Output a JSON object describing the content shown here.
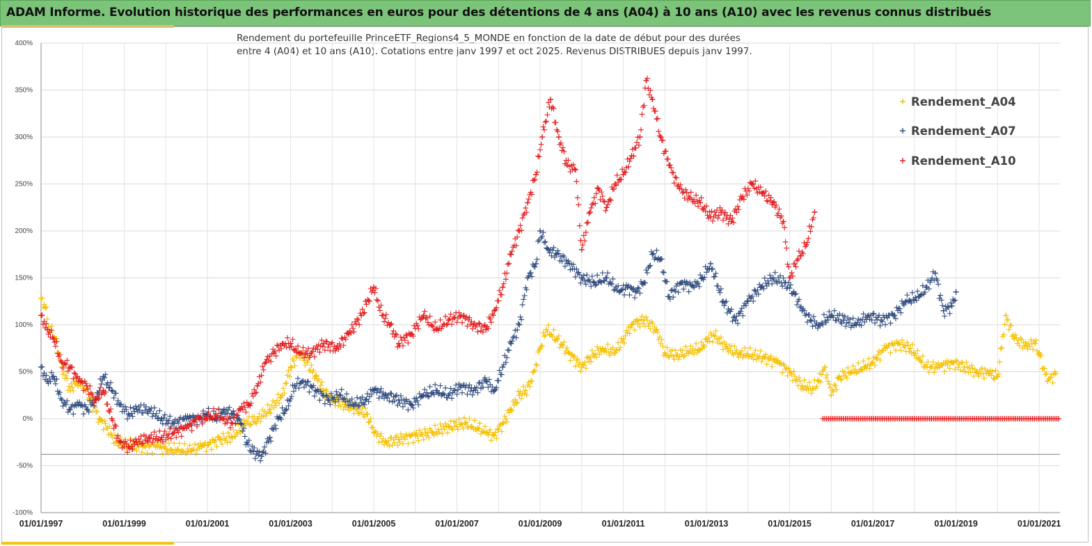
{
  "header": {
    "title": "ADAM Informe. Evolution historique des performances en euros pour des détentions de 4 ans (A04) à 10 ans (A10) avec les revenus connus distribués"
  },
  "colors": {
    "header_bg": "#7cc47a",
    "accent": "#f0c419",
    "a04": "#f5c000",
    "a07": "#2e4a7d",
    "a10": "#e31a1c"
  },
  "chart_data": {
    "type": "scatter",
    "title_line1": "Rendement du portefeuille PrinceETF_Regions4_5_MONDE  en fonction de la date de début pour des durées",
    "title_line2": "entre 4 (A04) et 10 ans (A10). Cotations entre janv 1997 et oct 2025. Revenus DISTRIBUES depuis janv 1997.",
    "xlabel": "",
    "ylabel": "",
    "xlim": [
      1997.0,
      2021.5
    ],
    "ylim": [
      -100,
      400
    ],
    "y_ticks": [
      -100,
      -50,
      0,
      50,
      100,
      150,
      200,
      250,
      300,
      350,
      400
    ],
    "y_tick_labels": [
      "-100%",
      "-50%",
      "0%",
      "50%",
      "100%",
      "150%",
      "200%",
      "250%",
      "300%",
      "350%",
      "400%"
    ],
    "x_ticks": [
      1997,
      1999,
      2001,
      2003,
      2005,
      2007,
      2009,
      2011,
      2013,
      2015,
      2017,
      2019,
      2021
    ],
    "x_tick_labels": [
      "01/01/1997",
      "01/01/1999",
      "01/01/2001",
      "01/01/2003",
      "01/01/2005",
      "01/01/2007",
      "01/01/2009",
      "01/01/2011",
      "01/01/2013",
      "01/01/2015",
      "01/01/2017",
      "01/01/2019",
      "01/01/2021"
    ],
    "reference_line_y": -38,
    "grid": true,
    "legend_position": "top-right",
    "series": [
      {
        "name": "Rendement_A04",
        "color": "#f5c000",
        "x": [
          1997.0,
          1997.1,
          1997.2,
          1997.35,
          1997.5,
          1997.7,
          1997.85,
          1998.0,
          1998.2,
          1998.4,
          1998.6,
          1998.8,
          1999.0,
          1999.2,
          1999.5,
          1999.8,
          2000.0,
          2000.3,
          2000.6,
          2000.85,
          2001.0,
          2001.3,
          2001.6,
          2001.9,
          2002.2,
          2002.5,
          2002.8,
          2003.0,
          2003.2,
          2003.4,
          2003.6,
          2003.8,
          2004.0,
          2004.3,
          2004.6,
          2004.85,
          2005.0,
          2005.3,
          2005.6,
          2006.0,
          2006.4,
          2006.8,
          2007.2,
          2007.5,
          2007.7,
          2007.9,
          2008.1,
          2008.3,
          2008.5,
          2008.65,
          2008.8,
          2009.0,
          2009.15,
          2009.4,
          2009.7,
          2010.0,
          2010.2,
          2010.5,
          2010.8,
          2011.0,
          2011.2,
          2011.5,
          2011.8,
          2012.0,
          2012.3,
          2012.6,
          2012.9,
          2013.0,
          2013.2,
          2013.5,
          2013.8,
          2014.1,
          2014.4,
          2014.7,
          2015.0,
          2015.3,
          2015.55,
          2015.7,
          2015.85,
          2016.0,
          2016.2,
          2016.5,
          2016.8,
          2017.0,
          2017.3,
          2017.6,
          2017.9,
          2018.1,
          2018.3,
          2018.6,
          2018.9,
          2019.2,
          2019.5,
          2019.8,
          2020.0,
          2020.2,
          2020.4,
          2020.7,
          2020.9,
          2021.0,
          2021.2,
          2021.4
        ],
        "values": [
          128,
          118,
          95,
          85,
          55,
          30,
          40,
          35,
          20,
          0,
          -10,
          -25,
          -28,
          -28,
          -30,
          -30,
          -32,
          -33,
          -34,
          -30,
          -28,
          -22,
          -20,
          -5,
          0,
          10,
          25,
          55,
          70,
          60,
          45,
          30,
          20,
          15,
          10,
          5,
          -15,
          -25,
          -22,
          -18,
          -15,
          -8,
          -5,
          -10,
          -15,
          -18,
          -5,
          10,
          25,
          30,
          40,
          75,
          95,
          85,
          70,
          55,
          65,
          75,
          70,
          85,
          100,
          105,
          95,
          70,
          68,
          72,
          75,
          85,
          88,
          75,
          70,
          68,
          65,
          60,
          50,
          35,
          32,
          40,
          55,
          25,
          45,
          50,
          55,
          60,
          75,
          80,
          75,
          65,
          55,
          55,
          60,
          55,
          50,
          48,
          45,
          110,
          85,
          78,
          80,
          70,
          40,
          48
        ]
      },
      {
        "name": "Rendement_A07",
        "color": "#2e4a7d",
        "x": [
          1997.0,
          1997.15,
          1997.3,
          1997.5,
          1997.7,
          1997.9,
          1998.1,
          1998.3,
          1998.5,
          1998.7,
          1998.9,
          1999.1,
          1999.3,
          1999.6,
          1999.9,
          2000.2,
          2000.5,
          2000.8,
          2001.0,
          2001.2,
          2001.4,
          2001.6,
          2001.8,
          2001.95,
          2002.1,
          2002.3,
          2002.5,
          2002.7,
          2002.9,
          2003.1,
          2003.3,
          2003.6,
          2003.9,
          2004.2,
          2004.5,
          2004.8,
          2005.0,
          2005.3,
          2005.6,
          2005.9,
          2006.2,
          2006.5,
          2006.8,
          2007.1,
          2007.4,
          2007.7,
          2007.9,
          2008.1,
          2008.3,
          2008.5,
          2008.7,
          2008.9,
          2009.0,
          2009.2,
          2009.4,
          2009.7,
          2010.0,
          2010.3,
          2010.6,
          2010.9,
          2011.1,
          2011.3,
          2011.5,
          2011.7,
          2011.9,
          2012.1,
          2012.4,
          2012.7,
          2012.9,
          2013.1,
          2013.4,
          2013.7,
          2014.0,
          2014.3,
          2014.6,
          2014.9,
          2015.1,
          2015.3,
          2015.5,
          2015.7,
          2016.0,
          2016.3,
          2016.6,
          2016.9,
          2017.2,
          2017.5,
          2017.8,
          2018.1,
          2018.3,
          2018.5,
          2018.7,
          2018.9,
          2019.0
        ],
        "values": [
          55,
          40,
          45,
          20,
          10,
          15,
          10,
          20,
          45,
          30,
          15,
          5,
          10,
          10,
          0,
          -5,
          0,
          0,
          5,
          0,
          10,
          5,
          -5,
          -25,
          -35,
          -40,
          -20,
          0,
          10,
          35,
          40,
          30,
          20,
          25,
          15,
          20,
          30,
          25,
          20,
          15,
          25,
          30,
          25,
          35,
          30,
          40,
          30,
          55,
          80,
          100,
          150,
          165,
          200,
          180,
          175,
          165,
          150,
          145,
          150,
          135,
          140,
          135,
          145,
          175,
          170,
          130,
          145,
          140,
          150,
          165,
          125,
          105,
          125,
          140,
          150,
          145,
          135,
          115,
          105,
          100,
          110,
          105,
          100,
          110,
          105,
          110,
          125,
          130,
          140,
          155,
          115,
          120,
          135
        ]
      },
      {
        "name": "Rendement_A10",
        "color": "#e31a1c",
        "x": [
          1997.0,
          1997.15,
          1997.3,
          1997.5,
          1997.7,
          1997.9,
          1998.1,
          1998.3,
          1998.5,
          1998.7,
          1998.9,
          1999.1,
          1999.3,
          1999.6,
          1999.9,
          2000.2,
          2000.5,
          2000.8,
          2001.0,
          2001.2,
          2001.4,
          2001.6,
          2001.8,
          2002.0,
          2002.2,
          2002.4,
          2002.6,
          2002.8,
          2003.0,
          2003.2,
          2003.5,
          2003.8,
          2004.1,
          2004.4,
          2004.7,
          2005.0,
          2005.2,
          2005.4,
          2005.6,
          2005.9,
          2006.2,
          2006.5,
          2006.8,
          2007.1,
          2007.4,
          2007.7,
          2007.9,
          2008.1,
          2008.3,
          2008.5,
          2008.7,
          2008.9,
          2009.05,
          2009.25,
          2009.45,
          2009.65,
          2009.85,
          2010.0,
          2010.2,
          2010.4,
          2010.6,
          2010.8,
          2011.0,
          2011.2,
          2011.4,
          2011.55,
          2011.7,
          2011.9,
          2012.1,
          2012.35,
          2012.6,
          2012.85,
          2013.1,
          2013.35,
          2013.6,
          2013.85,
          2014.1,
          2014.35,
          2014.6,
          2014.85,
          2015.0,
          2015.2,
          2015.4,
          2015.6
        ],
        "values": [
          110,
          95,
          85,
          60,
          55,
          40,
          35,
          20,
          30,
          0,
          -25,
          -30,
          -25,
          -20,
          -20,
          -15,
          -10,
          0,
          0,
          5,
          0,
          -5,
          10,
          15,
          35,
          60,
          70,
          80,
          80,
          70,
          70,
          80,
          75,
          90,
          110,
          140,
          110,
          100,
          80,
          90,
          110,
          95,
          105,
          110,
          100,
          95,
          115,
          140,
          175,
          200,
          230,
          260,
          300,
          340,
          300,
          270,
          265,
          180,
          220,
          245,
          225,
          250,
          260,
          280,
          300,
          360,
          340,
          300,
          270,
          245,
          235,
          230,
          215,
          220,
          210,
          235,
          250,
          240,
          230,
          210,
          150,
          170,
          185,
          220
        ]
      }
    ],
    "zero_series": {
      "name": "Rendement_A10",
      "color": "#e31a1c",
      "x_start": 2015.8,
      "x_end": 2021.5,
      "value": 0
    }
  }
}
